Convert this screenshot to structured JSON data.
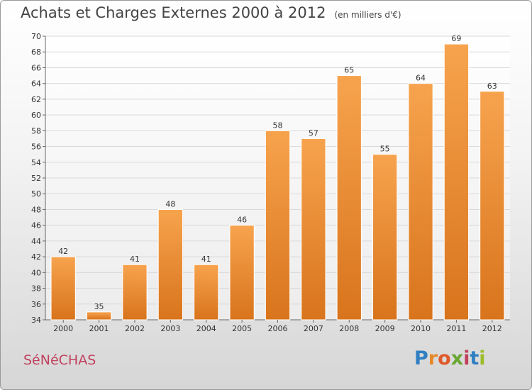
{
  "title": "Achats et Charges Externes 2000 à 2012",
  "subtitle": "(en milliers d'€)",
  "commune": "SéNéCHAS",
  "logo": {
    "letters": [
      "P",
      "r",
      "o",
      "x",
      "i",
      "t",
      "i"
    ],
    "colors": [
      "#2f7fc1",
      "#e6892a",
      "#e05a2a",
      "#6aa632",
      "#c0415e",
      "#2f7fc1",
      "#9bbd2a"
    ]
  },
  "colors": {
    "bar_light": "#f7a34e",
    "bar_dark": "#d8741c",
    "title": "#444444",
    "commune": "#c0415e",
    "grid": "#d9d9d9"
  },
  "chart_data": {
    "type": "bar",
    "categories": [
      "2000",
      "2001",
      "2002",
      "2003",
      "2004",
      "2005",
      "2006",
      "2007",
      "2008",
      "2009",
      "2010",
      "2011",
      "2012"
    ],
    "values": [
      42,
      35,
      41,
      48,
      41,
      46,
      58,
      57,
      65,
      55,
      64,
      69,
      63
    ],
    "title": "Achats et Charges Externes 2000 à 2012",
    "subtitle": "(en milliers d'€)",
    "xlabel": "",
    "ylabel": "",
    "ylim": [
      34,
      70
    ],
    "yticks": [
      34,
      36,
      38,
      40,
      42,
      44,
      46,
      48,
      50,
      52,
      54,
      56,
      58,
      60,
      62,
      64,
      66,
      68,
      70
    ],
    "grid": true,
    "legend": "none"
  }
}
